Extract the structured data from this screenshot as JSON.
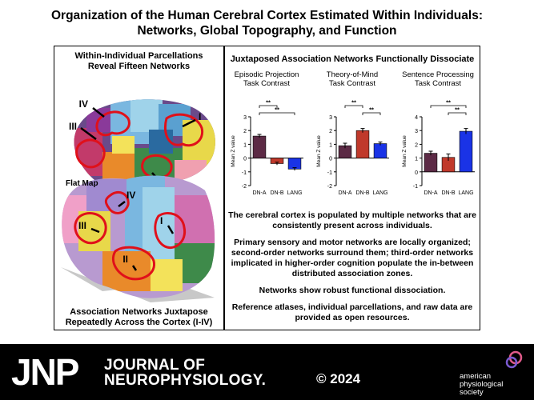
{
  "title": {
    "line1": "Organization of the Human Cerebral Cortex Estimated Within Individuals:",
    "line2": "Networks, Global Topography, and Function"
  },
  "left_panel": {
    "heading_line1": "Within-Individual Parcellations",
    "heading_line2": "Reveal Fifteen Networks",
    "labels": {
      "iv": "IV",
      "iii": "III",
      "i": "I",
      "ii": "II"
    },
    "flat_map_label": "Flat Map",
    "footer_line1": "Association Networks Juxtapose",
    "footer_line2": "Repeatedly Across the Cortex  (I-IV)"
  },
  "right_panel": {
    "heading": "Juxtaposed Association Networks Functionally Dissociate",
    "ylabel": "Mean Z value",
    "sig_marker": "**",
    "bullets": [
      "The cerebral cortex is populated by multiple networks that are consistently present across individuals.",
      "Primary sensory and motor networks are locally organized; second-order networks surround them; third-order networks implicated in higher-order cognition populate the in-between distributed association zones.",
      "Networks show robust functional dissociation.",
      "Reference atlases, individual parcellations, and raw data are provided as open resources."
    ]
  },
  "chart_data": [
    {
      "type": "bar",
      "title": "Episodic Projection Task Contrast",
      "title_line1": "Episodic Projection",
      "title_line2": "Task Contrast",
      "ylabel": "Mean Z value",
      "categories": [
        "DN-A",
        "DN-B",
        "LANG"
      ],
      "values": [
        1.6,
        -0.4,
        -0.8
      ],
      "errors": [
        0.12,
        0.1,
        0.1
      ],
      "colors": [
        "#5c2a45",
        "#c0392b",
        "#1a33e6"
      ],
      "ylim": [
        -2,
        3
      ],
      "yticks": [
        "-2",
        "-1",
        "0",
        "1",
        "2",
        "3"
      ],
      "significance": [
        [
          0,
          1,
          "**"
        ],
        [
          0,
          2,
          "**"
        ]
      ]
    },
    {
      "type": "bar",
      "title": "Theory-of-Mind Task Contrast",
      "title_line1": "Theory-of-Mind",
      "title_line2": "Task Contrast",
      "ylabel": "Mean Z value",
      "categories": [
        "DN-A",
        "DN-B",
        "LANG"
      ],
      "values": [
        0.9,
        2.0,
        1.05
      ],
      "errors": [
        0.18,
        0.15,
        0.12
      ],
      "colors": [
        "#5c2a45",
        "#c0392b",
        "#1a33e6"
      ],
      "ylim": [
        -2,
        3
      ],
      "yticks": [
        "-2",
        "-1",
        "0",
        "1",
        "2",
        "3"
      ],
      "significance": [
        [
          0,
          1,
          "**"
        ],
        [
          1,
          2,
          "**"
        ]
      ]
    },
    {
      "type": "bar",
      "title": "Sentence Processing Task Contrast",
      "title_line1": "Sentence Processing",
      "title_line2": "Task Contrast",
      "ylabel": "Mean Z value",
      "categories": [
        "DN-A",
        "DN-B",
        "LANG"
      ],
      "values": [
        1.35,
        1.05,
        2.95
      ],
      "errors": [
        0.15,
        0.25,
        0.2
      ],
      "colors": [
        "#5c2a45",
        "#c0392b",
        "#1a33e6"
      ],
      "ylim": [
        -1,
        4
      ],
      "yticks": [
        "-1",
        "0",
        "1",
        "2",
        "3",
        "4"
      ],
      "significance": [
        [
          0,
          2,
          "**"
        ],
        [
          1,
          2,
          "**"
        ]
      ]
    }
  ],
  "footer": {
    "jnp": "JNP",
    "journal_line1": "JOURNAL OF",
    "journal_line2": "NEUROPHYSIOLOGY.",
    "copyright": "© 2024",
    "aps_line1": "american",
    "aps_line2": "physiological",
    "aps_line3": "society"
  },
  "colors": {
    "background": "#ffffff",
    "footer": "#000000",
    "dn_a": "#5c2a45",
    "dn_b": "#c0392b",
    "lang": "#1a33e6",
    "network_outline": "#e0101a"
  }
}
